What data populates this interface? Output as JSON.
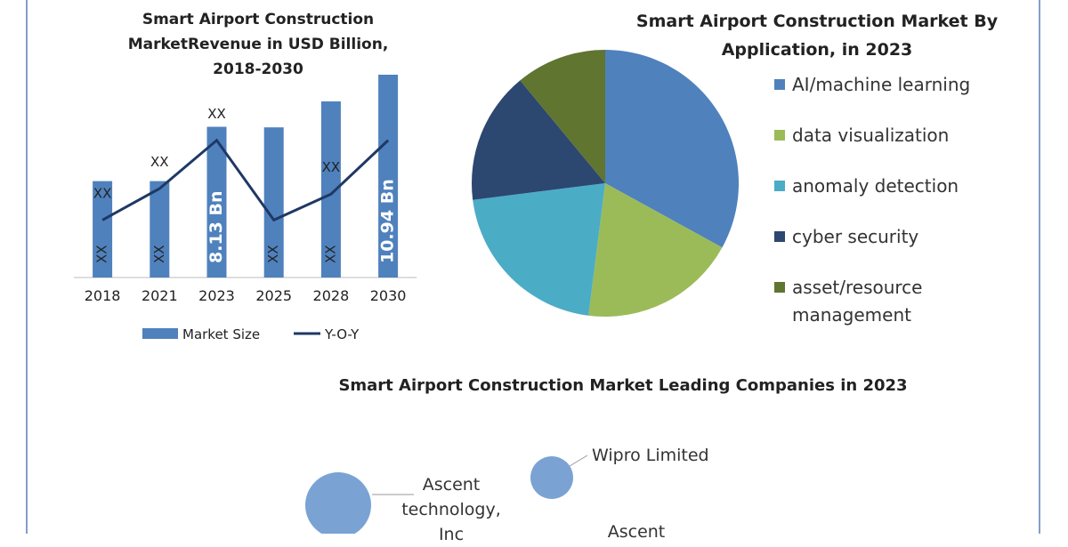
{
  "chart_data": [
    {
      "type": "bar",
      "title": "Smart Airport Construction MarketRevenue in USD Billion, 2018-2030",
      "categories": [
        "2018",
        "2021",
        "2023",
        "2025",
        "2028",
        "2030"
      ],
      "series": [
        {
          "name": "Market Size",
          "color": "#4f81bd",
          "values": [
            5.2,
            5.2,
            8.13,
            8.1,
            9.5,
            10.94
          ],
          "value_labels": [
            "XX",
            "XX",
            "8.13 Bn",
            "XX",
            "XX",
            "10.94 Bn"
          ]
        },
        {
          "name": "Y-O-Y",
          "type": "line",
          "color": "#1f3864",
          "values": [
            3.1,
            4.8,
            7.4,
            3.1,
            4.5,
            7.4
          ],
          "value_labels": [
            "XX",
            "XX",
            "XX",
            null,
            "XX",
            null
          ]
        }
      ]
    },
    {
      "type": "pie",
      "title": "Smart Airport Construction Market By Application, in 2023",
      "categories": [
        "AI/machine learning",
        "data visualization",
        "anomaly detection",
        "cyber security",
        "asset/resource management"
      ],
      "values": [
        33,
        19,
        21,
        16,
        11
      ],
      "colors": [
        "#4f81bd",
        "#9bbb59",
        "#4bacc6",
        "#2c4770",
        "#5f7530"
      ]
    },
    {
      "type": "bubble",
      "title": "Smart Airport Construction Market Leading Companies in 2023",
      "categories": [
        "Ascent technology, Inc",
        "Wipro Limited",
        "Ascent"
      ],
      "values": [
        37,
        24,
        null
      ],
      "color": "#7aa3d4"
    }
  ]
}
